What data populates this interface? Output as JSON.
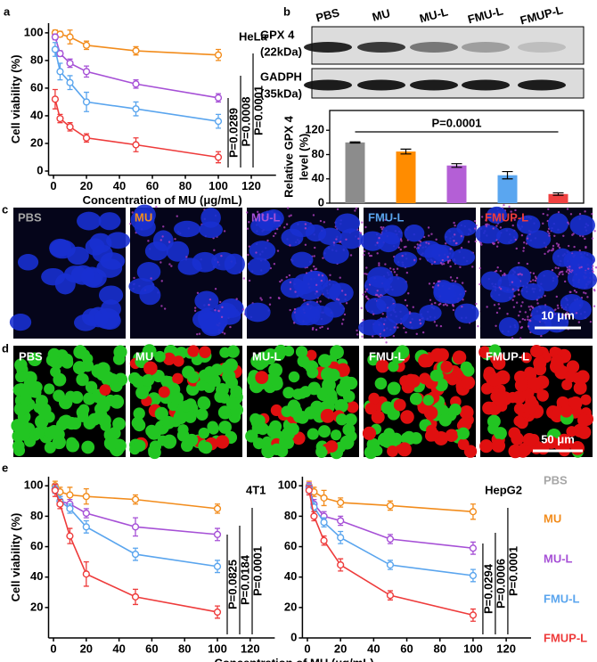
{
  "panel_labels": [
    "a",
    "b",
    "c",
    "d",
    "e"
  ],
  "legend": [
    {
      "label": "PBS",
      "color": "#a6a6a6"
    },
    {
      "label": "MU",
      "color": "#f28c1c"
    },
    {
      "label": "MU-L",
      "color": "#a650d6"
    },
    {
      "label": "FMU-L",
      "color": "#5aa5ee"
    },
    {
      "label": "FMUP-L",
      "color": "#ee3b3b"
    }
  ],
  "blot": {
    "lanes": [
      "PBS",
      "MU",
      "MU-L",
      "FMU-L",
      "FMUP-L"
    ],
    "rows": [
      {
        "label": "GPX 4",
        "sublabel": "(22kDa)"
      },
      {
        "label": "GADPH",
        "sublabel": "(35kDa)"
      }
    ]
  },
  "fluorescence": {
    "labels": [
      "PBS",
      "MU",
      "MU-L",
      "FMU-L",
      "FMUP-L"
    ],
    "scale_bar": "10 μm"
  },
  "live_dead": {
    "labels": [
      "PBS",
      "MU",
      "MU-L",
      "FMU-L",
      "FMUP-L"
    ],
    "scale_bar": "50 μm"
  },
  "chart_data": [
    {
      "type": "line",
      "annotation": "HeLa",
      "xlabel": "Concentration of MU (μg/mL)",
      "ylabel": "Cell viability (%)",
      "x": [
        1,
        4,
        10,
        20,
        50,
        100
      ],
      "series": [
        {
          "color": "#f28c1c",
          "values": [
            100,
            99,
            97,
            91,
            87,
            84
          ],
          "errors": [
            2,
            2,
            5,
            3,
            3,
            4
          ]
        },
        {
          "color": "#a650d6",
          "values": [
            97,
            85,
            78,
            72,
            63,
            53
          ],
          "errors": [
            2,
            2,
            3,
            4,
            3,
            3
          ]
        },
        {
          "color": "#5aa5ee",
          "values": [
            88,
            72,
            64,
            50,
            45,
            36
          ],
          "errors": [
            5,
            6,
            5,
            7,
            5,
            5
          ]
        },
        {
          "color": "#ee3b3b",
          "values": [
            52,
            38,
            32,
            24,
            19,
            10
          ],
          "errors": [
            7,
            3,
            3,
            3,
            5,
            4
          ]
        }
      ],
      "xlim": [
        -3,
        135
      ],
      "xticks": [
        0,
        20,
        40,
        60,
        80,
        100,
        120
      ],
      "ylim": [
        -3,
        107
      ],
      "yticks": [
        0,
        20,
        40,
        60,
        80,
        100
      ],
      "p_values": [
        "P=0.0289",
        "P=0.0008",
        "P=0.0001"
      ]
    },
    {
      "type": "bar",
      "ylabel": [
        "Relative GPX 4",
        "level (%)"
      ],
      "annotation": "P=0.0001",
      "values": [
        100,
        85,
        62,
        46,
        15
      ],
      "errors": [
        1,
        4,
        3,
        6,
        2
      ],
      "colors": [
        "#8c8c8c",
        "#ff8c00",
        "#b45fd6",
        "#5aa6f0",
        "#f04040"
      ],
      "ylim": [
        0,
        135
      ],
      "yticks": [
        0,
        40,
        80,
        120
      ]
    },
    {
      "type": "line",
      "annotation": "4T1",
      "xlabel": "Concentration of MU (μg/mL)",
      "ylabel": "Cell viability (%)",
      "x": [
        1,
        4,
        10,
        20,
        50,
        100
      ],
      "series": [
        {
          "color": "#f28c1c",
          "values": [
            100,
            96,
            94,
            93,
            91,
            85
          ],
          "errors": [
            3,
            3,
            5,
            5,
            3,
            3
          ]
        },
        {
          "color": "#a650d6",
          "values": [
            98,
            90,
            88,
            82,
            73,
            68
          ],
          "errors": [
            3,
            3,
            3,
            3,
            6,
            4
          ]
        },
        {
          "color": "#5aa5ee",
          "values": [
            98,
            90,
            85,
            73,
            55,
            47
          ],
          "errors": [
            3,
            3,
            3,
            4,
            4,
            4
          ]
        },
        {
          "color": "#ee3b3b",
          "values": [
            97,
            88,
            67,
            42,
            27,
            17
          ],
          "errors": [
            4,
            3,
            5,
            8,
            5,
            4
          ]
        }
      ],
      "xlim": [
        -3,
        135
      ],
      "xticks": [
        0,
        20,
        40,
        60,
        80,
        100,
        120
      ],
      "ylim": [
        0,
        106
      ],
      "yticks": [
        20,
        40,
        60,
        80,
        100
      ],
      "p_values": [
        "P=0.0825",
        "P=0.0184",
        "P=0.0001"
      ]
    },
    {
      "type": "line",
      "annotation": "HepG2",
      "x": [
        1,
        4,
        10,
        20,
        50,
        100
      ],
      "series": [
        {
          "color": "#f28c1c",
          "values": [
            100,
            96,
            92,
            89,
            87,
            83
          ],
          "errors": [
            3,
            3,
            5,
            3,
            3,
            5
          ]
        },
        {
          "color": "#a650d6",
          "values": [
            99,
            88,
            80,
            77,
            65,
            59
          ],
          "errors": [
            3,
            3,
            3,
            3,
            3,
            4
          ]
        },
        {
          "color": "#5aa5ee",
          "values": [
            98,
            86,
            76,
            66,
            48,
            41
          ],
          "errors": [
            3,
            3,
            3,
            4,
            3,
            4
          ]
        },
        {
          "color": "#ee3b3b",
          "values": [
            97,
            80,
            64,
            48,
            28,
            15
          ],
          "errors": [
            3,
            3,
            3,
            4,
            3,
            4
          ]
        }
      ],
      "xlim": [
        -3,
        135
      ],
      "xticks": [
        0,
        20,
        40,
        60,
        80,
        100,
        120
      ],
      "ylim": [
        0,
        106
      ],
      "yticks": [
        0,
        20,
        40,
        60,
        80,
        100
      ],
      "p_values": [
        "P=0.0294",
        "P=0.0006",
        "P=0.0001"
      ]
    }
  ]
}
